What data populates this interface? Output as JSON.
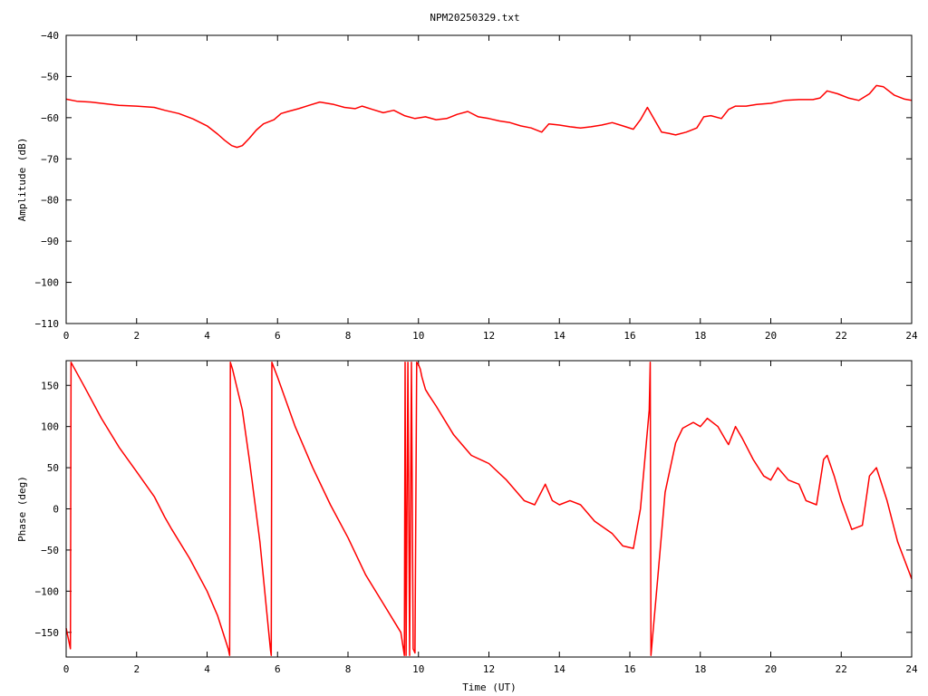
{
  "title": "NPM20250329.txt",
  "xlabel": "Time (UT)",
  "chart_data": [
    {
      "type": "line",
      "title": "NPM20250329.txt",
      "xlabel": "",
      "ylabel": "Amplitude (dB)",
      "xlim": [
        0,
        24
      ],
      "ylim": [
        -110,
        -40
      ],
      "xticks": [
        0,
        2,
        4,
        6,
        8,
        10,
        12,
        14,
        16,
        18,
        20,
        22,
        24
      ],
      "yticks": [
        -110,
        -100,
        -90,
        -80,
        -70,
        -60,
        -50,
        -40
      ],
      "color": "#ff0000",
      "series": [
        {
          "x": [
            0,
            0.3,
            0.7,
            1,
            1.5,
            2,
            2.5,
            2.8,
            3.2,
            3.6,
            4,
            4.3,
            4.5,
            4.7,
            4.85,
            5,
            5.2,
            5.4,
            5.6,
            5.9,
            6.1,
            6.3,
            6.6,
            6.9,
            7.2,
            7.6,
            7.9,
            8.2,
            8.4,
            8.7,
            9,
            9.3,
            9.6,
            9.9,
            10.2,
            10.5,
            10.8,
            11.1,
            11.4,
            11.7,
            12,
            12.3,
            12.6,
            12.9,
            13.2,
            13.5,
            13.7,
            14,
            14.3,
            14.6,
            14.9,
            15.2,
            15.5,
            15.8,
            16.1,
            16.3,
            16.5,
            16.7,
            16.9,
            17.1,
            17.3,
            17.6,
            17.9,
            18.1,
            18.3,
            18.6,
            18.8,
            19,
            19.3,
            19.6,
            20,
            20.4,
            20.8,
            21.2,
            21.4,
            21.6,
            21.9,
            22.2,
            22.5,
            22.8,
            23,
            23.2,
            23.5,
            23.8,
            24
          ],
          "y": [
            -55.5,
            -56,
            -56.2,
            -56.5,
            -57,
            -57.2,
            -57.5,
            -58.2,
            -59,
            -60.3,
            -62,
            -64,
            -65.5,
            -66.8,
            -67.2,
            -66.8,
            -65,
            -63,
            -61.5,
            -60.5,
            -59,
            -58.5,
            -57.8,
            -57,
            -56.2,
            -56.8,
            -57.5,
            -57.8,
            -57.2,
            -58,
            -58.8,
            -58.2,
            -59.5,
            -60.2,
            -59.8,
            -60.5,
            -60.2,
            -59.2,
            -58.5,
            -59.8,
            -60.2,
            -60.8,
            -61.2,
            -62,
            -62.5,
            -63.5,
            -61.5,
            -61.8,
            -62.2,
            -62.5,
            -62.2,
            -61.8,
            -61.2,
            -62,
            -62.8,
            -60.5,
            -57.5,
            -60.5,
            -63.5,
            -63.8,
            -64.2,
            -63.5,
            -62.5,
            -59.8,
            -59.5,
            -60.2,
            -58,
            -57.2,
            -57.2,
            -56.8,
            -56.5,
            -55.8,
            -55.6,
            -55.6,
            -55.2,
            -53.5,
            -54.2,
            -55.2,
            -55.8,
            -54.2,
            -52.2,
            -52.5,
            -54.5,
            -55.5,
            -55.8
          ]
        }
      ]
    },
    {
      "type": "line",
      "xlabel": "Time (UT)",
      "ylabel": "Phase (deg)",
      "xlim": [
        0,
        24
      ],
      "ylim": [
        -180,
        180
      ],
      "xticks": [
        0,
        2,
        4,
        6,
        8,
        10,
        12,
        14,
        16,
        18,
        20,
        22,
        24
      ],
      "yticks": [
        -150,
        -100,
        -50,
        0,
        50,
        100,
        150
      ],
      "color": "#ff0000",
      "series": [
        {
          "x": [
            0,
            0.12,
            0.14,
            0.5,
            1,
            1.5,
            2,
            2.5,
            2.8,
            3,
            3.5,
            4,
            4.3,
            4.6,
            4.64,
            4.66,
            4.72,
            5,
            5.2,
            5.5,
            5.8,
            5.82,
            5.84,
            6,
            6.5,
            7,
            7.5,
            8,
            8.5,
            9,
            9.5,
            9.6,
            9.62,
            9.65,
            9.7,
            9.75,
            9.8,
            9.85,
            9.9,
            9.95,
            10,
            10.05,
            10.1,
            10.2,
            10.3,
            10.5,
            11,
            11.5,
            12,
            12.5,
            13,
            13.3,
            13.6,
            13.8,
            14,
            14.3,
            14.6,
            15,
            15.5,
            15.8,
            16.1,
            16.3,
            16.55,
            16.58,
            16.6,
            16.8,
            17,
            17.3,
            17.5,
            17.8,
            18,
            18.2,
            18.5,
            18.7,
            18.8,
            19,
            19.2,
            19.5,
            19.8,
            20,
            20.2,
            20.5,
            20.8,
            21,
            21.3,
            21.5,
            21.6,
            21.8,
            22,
            22.3,
            22.6,
            22.8,
            23,
            23.3,
            23.6,
            24
          ],
          "y": [
            -145,
            -170,
            178,
            150,
            110,
            75,
            45,
            15,
            -10,
            -25,
            -60,
            -100,
            -130,
            -170,
            -178,
            178,
            170,
            120,
            60,
            -40,
            -172,
            -178,
            178,
            160,
            100,
            50,
            5,
            -35,
            -80,
            -115,
            -150,
            -178,
            178,
            -178,
            178,
            -178,
            178,
            -170,
            -175,
            178,
            175,
            170,
            160,
            145,
            138,
            125,
            90,
            65,
            55,
            35,
            10,
            5,
            30,
            10,
            5,
            10,
            5,
            -15,
            -30,
            -45,
            -48,
            0,
            120,
            178,
            -178,
            -80,
            20,
            80,
            98,
            105,
            100,
            110,
            100,
            85,
            78,
            100,
            85,
            60,
            40,
            35,
            50,
            35,
            30,
            10,
            5,
            60,
            65,
            40,
            10,
            -25,
            -20,
            40,
            50,
            10,
            -40,
            -85
          ]
        }
      ]
    }
  ]
}
